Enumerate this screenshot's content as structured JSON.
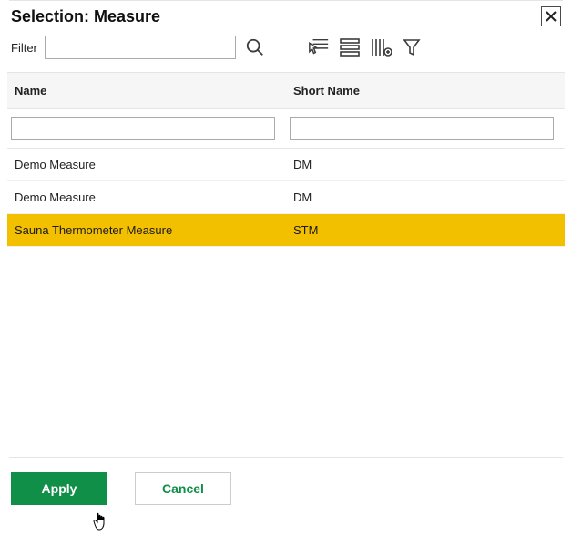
{
  "dialog": {
    "title": "Selection: Measure"
  },
  "filter": {
    "label": "Filter",
    "value": ""
  },
  "table": {
    "columns": {
      "name": "Name",
      "short": "Short Name"
    },
    "column_filters": {
      "name": "",
      "short": ""
    },
    "rows": [
      {
        "name": "Demo Measure",
        "short": "DM",
        "selected": false
      },
      {
        "name": "Demo Measure",
        "short": "DM",
        "selected": false
      },
      {
        "name": "Sauna Thermometer Measure",
        "short": "STM",
        "selected": true
      }
    ]
  },
  "buttons": {
    "apply": "Apply",
    "cancel": "Cancel"
  },
  "colors": {
    "primary": "#0f8f47",
    "selected_row": "#f3c000",
    "border": "#e5e5e5",
    "icon": "#3c3c3c"
  }
}
